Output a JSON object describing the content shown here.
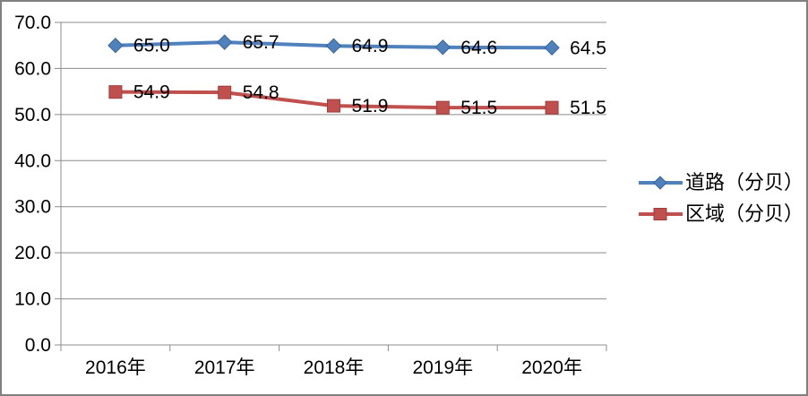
{
  "chart_data": {
    "type": "line",
    "categories": [
      "2016年",
      "2017年",
      "2018年",
      "2019年",
      "2020年"
    ],
    "series": [
      {
        "name": "道路（分贝）",
        "values": [
          65.0,
          65.7,
          64.9,
          64.6,
          64.5
        ],
        "labels": [
          "65.0",
          "65.7",
          "64.9",
          "64.6",
          "64.5"
        ],
        "color": "#4F81BD",
        "edge_color": "#3A6596",
        "marker": "diamond"
      },
      {
        "name": "区域（分贝）",
        "values": [
          54.9,
          54.8,
          51.9,
          51.5,
          51.5
        ],
        "labels": [
          "54.9",
          "54.8",
          "51.9",
          "51.5",
          "51.5"
        ],
        "color": "#C0504D",
        "edge_color": "#9E3D3B",
        "marker": "square"
      }
    ],
    "title": "",
    "xlabel": "",
    "ylabel": "",
    "ylim": [
      0,
      70
    ],
    "yticks": [
      0,
      10,
      20,
      30,
      40,
      50,
      60,
      70
    ],
    "ytick_labels": [
      "0.0",
      "10.0",
      "20.0",
      "30.0",
      "40.0",
      "50.0",
      "60.0",
      "70.0"
    ],
    "grid": true,
    "legend_position": "right",
    "colors": {
      "gridline": "#8C8C8C",
      "axis": "#8C8C8C",
      "text": "#000000",
      "border": "#808080",
      "background": "#FFFFFF"
    }
  }
}
